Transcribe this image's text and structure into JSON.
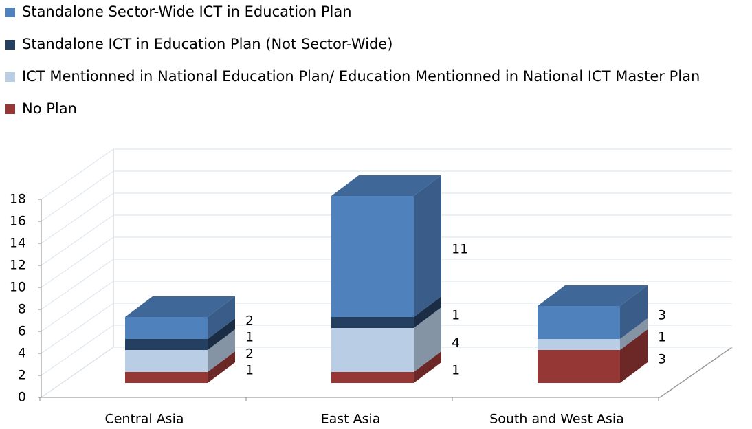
{
  "chart_data": {
    "type": "bar",
    "stacked": true,
    "categories": [
      "Central Asia",
      "East Asia",
      "South and West Asia"
    ],
    "series": [
      {
        "name": "Standalone Sector-Wide ICT in Education Plan",
        "color": "#4f81bd",
        "values": [
          2,
          11,
          3
        ]
      },
      {
        "name": "Standalone ICT in Education Plan (Not Sector-Wide)",
        "color": "#243f60",
        "values": [
          1,
          1,
          0
        ]
      },
      {
        "name": "ICT Mentionned in National Education Plan/ Education Mentionned in National ICT Master Plan",
        "color": "#b9cde5",
        "values": [
          2,
          4,
          1
        ]
      },
      {
        "name": "No Plan",
        "color": "#953735",
        "values": [
          1,
          1,
          3
        ]
      }
    ],
    "ylim": [
      0,
      18
    ],
    "yticks": [
      0,
      2,
      4,
      6,
      8,
      10,
      12,
      14,
      16,
      18
    ],
    "grid": true,
    "legend": "top"
  }
}
